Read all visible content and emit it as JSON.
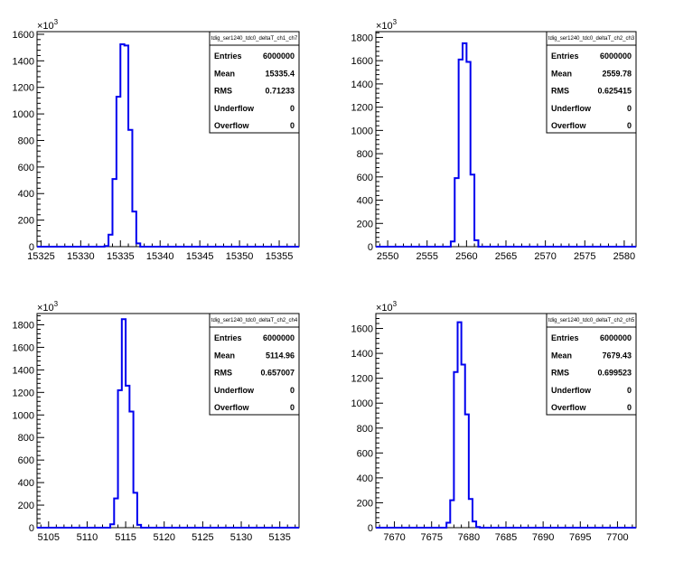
{
  "chart_data": [
    {
      "type": "histogram",
      "stats": {
        "title": "tdig_ser1240_tdc0_deltaT_ch1_ch7",
        "rows": [
          [
            "Entries",
            "6000000"
          ],
          [
            "Mean",
            "15335.4"
          ],
          [
            "RMS",
            "0.71233"
          ],
          [
            "Underflow",
            "0"
          ],
          [
            "Overflow",
            "0"
          ]
        ]
      },
      "y_multiplier": "×10",
      "y_exponent": "3",
      "xlim": [
        15324.5,
        15357.5
      ],
      "ylim": [
        0,
        1620
      ],
      "xticks": [
        15325,
        15330,
        15335,
        15340,
        15345,
        15350,
        15355
      ],
      "yticks": [
        0,
        200,
        400,
        600,
        800,
        1000,
        1200,
        1400,
        1600
      ],
      "bin_edges": [
        15333.0,
        15333.5,
        15334.0,
        15334.5,
        15335.0,
        15335.5,
        15336.0,
        15336.5,
        15337.0,
        15337.5
      ],
      "values": [
        5,
        90,
        510,
        1130,
        1525,
        1515,
        880,
        265,
        25
      ]
    },
    {
      "type": "histogram",
      "stats": {
        "title": "tdig_ser1240_tdc0_deltaT_ch2_ch3",
        "rows": [
          [
            "Entries",
            "6000000"
          ],
          [
            "Mean",
            "2559.78"
          ],
          [
            "RMS",
            "0.625415"
          ],
          [
            "Underflow",
            "0"
          ],
          [
            "Overflow",
            "0"
          ]
        ]
      },
      "y_multiplier": "×10",
      "y_exponent": "3",
      "xlim": [
        2548.5,
        2581.5
      ],
      "ylim": [
        0,
        1850
      ],
      "xticks": [
        2550,
        2555,
        2560,
        2565,
        2570,
        2575,
        2580
      ],
      "yticks": [
        0,
        200,
        400,
        600,
        800,
        1000,
        1200,
        1400,
        1600,
        1800
      ],
      "bin_edges": [
        2558.0,
        2558.5,
        2559.0,
        2559.5,
        2560.0,
        2560.5,
        2561.0,
        2561.5
      ],
      "values": [
        45,
        590,
        1610,
        1750,
        1590,
        620,
        55
      ]
    },
    {
      "type": "histogram",
      "stats": {
        "title": "tdig_ser1240_tdc0_deltaT_ch2_ch4",
        "rows": [
          [
            "Entries",
            "6000000"
          ],
          [
            "Mean",
            "5114.96"
          ],
          [
            "RMS",
            "0.657007"
          ],
          [
            "Underflow",
            "0"
          ],
          [
            "Overflow",
            "0"
          ]
        ]
      },
      "y_multiplier": "×10",
      "y_exponent": "3",
      "xlim": [
        5103.5,
        5137.5
      ],
      "ylim": [
        0,
        1900
      ],
      "xticks": [
        5105,
        5110,
        5115,
        5120,
        5125,
        5130,
        5135
      ],
      "yticks": [
        0,
        200,
        400,
        600,
        800,
        1000,
        1200,
        1400,
        1600,
        1800
      ],
      "bin_edges": [
        5113.0,
        5113.5,
        5114.0,
        5114.5,
        5115.0,
        5115.5,
        5116.0,
        5116.5,
        5117.0
      ],
      "values": [
        30,
        260,
        1220,
        1850,
        1260,
        1030,
        310,
        25
      ]
    },
    {
      "type": "histogram",
      "stats": {
        "title": "tdig_ser1240_tdc0_deltaT_ch2_ch5",
        "rows": [
          [
            "Entries",
            "6000000"
          ],
          [
            "Mean",
            "7679.43"
          ],
          [
            "RMS",
            "0.699523"
          ],
          [
            "Underflow",
            "0"
          ],
          [
            "Overflow",
            "0"
          ]
        ]
      },
      "y_multiplier": "×10",
      "y_exponent": "3",
      "xlim": [
        7667.5,
        7702.5
      ],
      "ylim": [
        0,
        1720
      ],
      "xticks": [
        7670,
        7675,
        7680,
        7685,
        7690,
        7695,
        7700
      ],
      "yticks": [
        0,
        200,
        400,
        600,
        800,
        1000,
        1200,
        1400,
        1600
      ],
      "bin_edges": [
        7677.0,
        7677.5,
        7678.0,
        7678.5,
        7679.0,
        7679.5,
        7680.0,
        7680.5,
        7681.0,
        7681.5
      ],
      "values": [
        40,
        220,
        1250,
        1650,
        1310,
        910,
        230,
        50,
        5
      ]
    }
  ]
}
